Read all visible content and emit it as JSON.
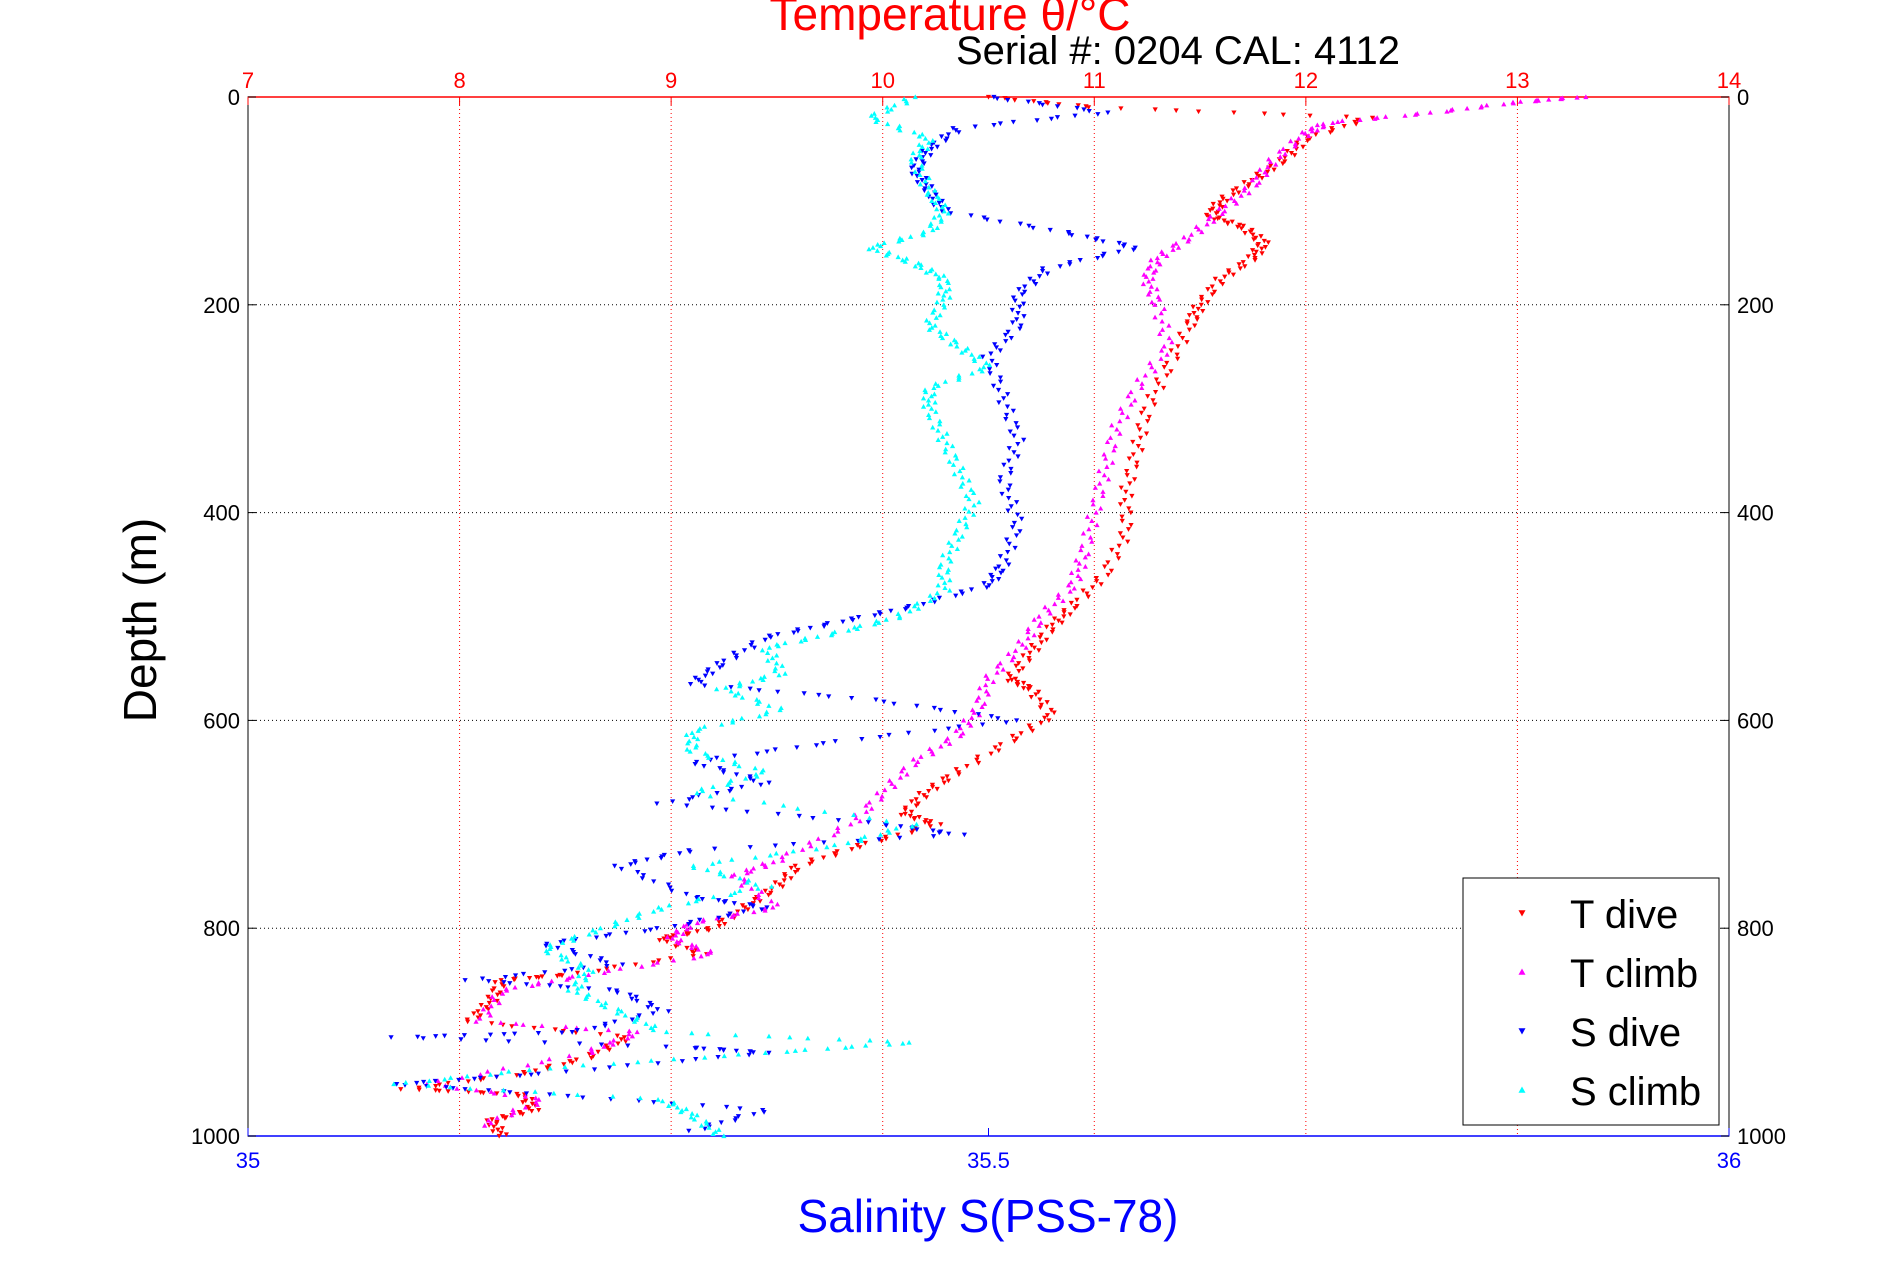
{
  "chart_data": {
    "type": "scatter",
    "title": "Temperature θ/°C",
    "subtitle": "Serial #: 0204  CAL: 4112",
    "ylabel": "Depth (m)",
    "xlabel": "Salinity S(PSS-78)",
    "y_axis": {
      "label": "Depth (m)",
      "range": [
        0,
        1000
      ],
      "reversed": true,
      "ticks": [
        "0",
        "200",
        "400",
        "600",
        "800",
        "1000"
      ]
    },
    "x_axis_top": {
      "label": "Temperature θ/°C",
      "range": [
        7,
        14
      ],
      "color": "#ff0000",
      "ticks": [
        "7",
        "8",
        "9",
        "10",
        "11",
        "12",
        "13",
        "14"
      ]
    },
    "x_axis_bottom": {
      "label": "Salinity S(PSS-78)",
      "range": [
        35,
        36
      ],
      "color": "#0000ff",
      "ticks": [
        "35",
        "35.5",
        "36"
      ]
    },
    "grid": true,
    "legend_position": "bottom-right",
    "series": [
      {
        "name": "T dive",
        "axis": "temperature",
        "color": "#ff0000",
        "marker": "triangle-down",
        "points": [
          [
            10.5,
            0
          ],
          [
            11.0,
            10
          ],
          [
            12.3,
            20
          ],
          [
            12.0,
            40
          ],
          [
            11.9,
            60
          ],
          [
            11.75,
            80
          ],
          [
            11.6,
            100
          ],
          [
            11.55,
            115
          ],
          [
            11.7,
            125
          ],
          [
            11.8,
            140
          ],
          [
            11.75,
            155
          ],
          [
            11.6,
            175
          ],
          [
            11.5,
            200
          ],
          [
            11.45,
            220
          ],
          [
            11.35,
            260
          ],
          [
            11.25,
            300
          ],
          [
            11.2,
            340
          ],
          [
            11.15,
            380
          ],
          [
            11.15,
            420
          ],
          [
            11.05,
            460
          ],
          [
            10.9,
            490
          ],
          [
            10.8,
            510
          ],
          [
            10.7,
            535
          ],
          [
            10.6,
            560
          ],
          [
            10.7,
            570
          ],
          [
            10.8,
            595
          ],
          [
            10.6,
            620
          ],
          [
            10.35,
            650
          ],
          [
            10.2,
            670
          ],
          [
            10.1,
            690
          ],
          [
            10.25,
            700
          ],
          [
            9.9,
            720
          ],
          [
            9.6,
            740
          ],
          [
            9.5,
            760
          ],
          [
            9.35,
            780
          ],
          [
            9.2,
            800
          ],
          [
            8.95,
            810
          ],
          [
            9.15,
            825
          ],
          [
            8.5,
            845
          ],
          [
            8.2,
            850
          ],
          [
            8.15,
            870
          ],
          [
            8.05,
            890
          ],
          [
            8.8,
            905
          ],
          [
            8.6,
            925
          ],
          [
            8.3,
            940
          ],
          [
            7.75,
            955
          ],
          [
            8.3,
            960
          ],
          [
            8.35,
            975
          ],
          [
            8.15,
            985
          ],
          [
            8.2,
            1000
          ]
        ]
      },
      {
        "name": "T climb",
        "axis": "temperature",
        "color": "#ff00ff",
        "marker": "triangle-up",
        "points": [
          [
            13.3,
            0
          ],
          [
            13.0,
            5
          ],
          [
            12.6,
            15
          ],
          [
            12.1,
            25
          ],
          [
            12.0,
            35
          ],
          [
            11.85,
            60
          ],
          [
            11.75,
            85
          ],
          [
            11.6,
            110
          ],
          [
            11.45,
            135
          ],
          [
            11.3,
            155
          ],
          [
            11.25,
            175
          ],
          [
            11.3,
            200
          ],
          [
            11.35,
            240
          ],
          [
            11.2,
            280
          ],
          [
            11.1,
            320
          ],
          [
            11.05,
            360
          ],
          [
            11.0,
            400
          ],
          [
            10.95,
            440
          ],
          [
            10.9,
            470
          ],
          [
            10.75,
            500
          ],
          [
            10.65,
            530
          ],
          [
            10.5,
            560
          ],
          [
            10.45,
            590
          ],
          [
            10.35,
            615
          ],
          [
            10.15,
            640
          ],
          [
            10.0,
            670
          ],
          [
            9.85,
            700
          ],
          [
            9.5,
            735
          ],
          [
            9.3,
            750
          ],
          [
            9.5,
            780
          ],
          [
            9.1,
            795
          ],
          [
            9.0,
            810
          ],
          [
            9.2,
            825
          ],
          [
            8.6,
            845
          ],
          [
            8.2,
            860
          ],
          [
            8.1,
            890
          ],
          [
            8.85,
            900
          ],
          [
            8.6,
            920
          ],
          [
            7.85,
            950
          ],
          [
            8.4,
            965
          ],
          [
            8.1,
            990
          ]
        ]
      },
      {
        "name": "S dive",
        "axis": "salinity",
        "color": "#0000ff",
        "marker": "triangle-down",
        "points": [
          [
            35.5,
            0
          ],
          [
            35.58,
            15
          ],
          [
            35.48,
            30
          ],
          [
            35.46,
            50
          ],
          [
            35.45,
            70
          ],
          [
            35.46,
            90
          ],
          [
            35.47,
            110
          ],
          [
            35.55,
            130
          ],
          [
            35.6,
            145
          ],
          [
            35.54,
            165
          ],
          [
            35.52,
            190
          ],
          [
            35.52,
            220
          ],
          [
            35.5,
            250
          ],
          [
            35.51,
            290
          ],
          [
            35.52,
            330
          ],
          [
            35.51,
            370
          ],
          [
            35.52,
            410
          ],
          [
            35.51,
            450
          ],
          [
            35.5,
            470
          ],
          [
            35.45,
            490
          ],
          [
            35.4,
            505
          ],
          [
            35.35,
            520
          ],
          [
            35.32,
            545
          ],
          [
            35.3,
            565
          ],
          [
            35.42,
            580
          ],
          [
            35.52,
            600
          ],
          [
            35.4,
            620
          ],
          [
            35.3,
            640
          ],
          [
            35.35,
            660
          ],
          [
            35.28,
            680
          ],
          [
            35.43,
            700
          ],
          [
            35.48,
            710
          ],
          [
            35.3,
            725
          ],
          [
            35.25,
            740
          ],
          [
            35.3,
            770
          ],
          [
            35.35,
            780
          ],
          [
            35.28,
            800
          ],
          [
            35.2,
            815
          ],
          [
            35.25,
            835
          ],
          [
            35.15,
            850
          ],
          [
            35.25,
            860
          ],
          [
            35.28,
            880
          ],
          [
            35.22,
            900
          ],
          [
            35.1,
            905
          ],
          [
            35.3,
            915
          ],
          [
            35.35,
            920
          ],
          [
            35.2,
            940
          ],
          [
            35.1,
            950
          ],
          [
            35.2,
            960
          ],
          [
            35.35,
            975
          ],
          [
            35.3,
            995
          ]
        ]
      },
      {
        "name": "S climb",
        "axis": "salinity",
        "color": "#00ffff",
        "marker": "triangle-up",
        "points": [
          [
            35.45,
            0
          ],
          [
            35.42,
            20
          ],
          [
            35.46,
            40
          ],
          [
            35.45,
            60
          ],
          [
            35.46,
            90
          ],
          [
            35.47,
            110
          ],
          [
            35.46,
            130
          ],
          [
            35.42,
            145
          ],
          [
            35.45,
            160
          ],
          [
            35.47,
            175
          ],
          [
            35.47,
            195
          ],
          [
            35.46,
            220
          ],
          [
            35.48,
            240
          ],
          [
            35.5,
            260
          ],
          [
            35.46,
            280
          ],
          [
            35.46,
            300
          ],
          [
            35.47,
            330
          ],
          [
            35.48,
            360
          ],
          [
            35.49,
            390
          ],
          [
            35.48,
            420
          ],
          [
            35.47,
            450
          ],
          [
            35.47,
            475
          ],
          [
            35.44,
            500
          ],
          [
            35.4,
            515
          ],
          [
            35.35,
            530
          ],
          [
            35.36,
            555
          ],
          [
            35.32,
            570
          ],
          [
            35.36,
            590
          ],
          [
            35.3,
            610
          ],
          [
            35.3,
            630
          ],
          [
            35.35,
            650
          ],
          [
            35.3,
            670
          ],
          [
            35.45,
            700
          ],
          [
            35.4,
            720
          ],
          [
            35.3,
            740
          ],
          [
            35.35,
            760
          ],
          [
            35.28,
            780
          ],
          [
            35.24,
            800
          ],
          [
            35.2,
            820
          ],
          [
            35.23,
            840
          ],
          [
            35.22,
            860
          ],
          [
            35.25,
            880
          ],
          [
            35.28,
            900
          ],
          [
            35.45,
            910
          ],
          [
            35.35,
            920
          ],
          [
            35.2,
            935
          ],
          [
            35.1,
            950
          ],
          [
            35.28,
            965
          ],
          [
            35.3,
            980
          ],
          [
            35.32,
            1000
          ]
        ]
      }
    ]
  }
}
